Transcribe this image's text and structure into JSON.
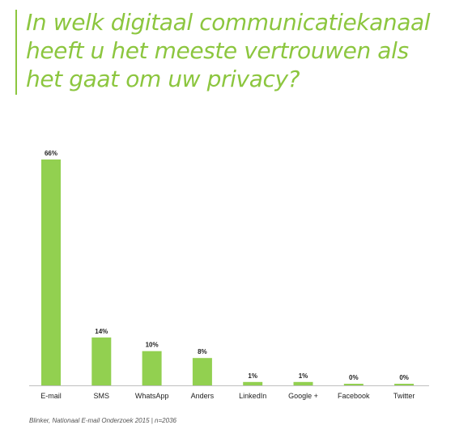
{
  "title": "In welk digitaal communicatiekanaal heeft u het meeste vertrouwen als het gaat om uw privacy?",
  "source": "Blinker, Nationaal E-mail Onderzoek 2015 | n=2036",
  "colors": {
    "accent": "#8cc63f",
    "bar": "#92d050",
    "axis": "#bfbfbf"
  },
  "chart_data": {
    "type": "bar",
    "title": "In welk digitaal communicatiekanaal heeft u het meeste vertrouwen als het gaat om uw privacy?",
    "categories": [
      "E-mail",
      "SMS",
      "WhatsApp",
      "Anders",
      "LinkedIn",
      "Google +",
      "Facebook",
      "Twitter"
    ],
    "values": [
      66,
      14,
      10,
      8,
      1,
      1,
      0,
      0
    ],
    "value_labels": [
      "66%",
      "14%",
      "10%",
      "8%",
      "1%",
      "1%",
      "0%",
      "0%"
    ],
    "unit": "%",
    "ylim": [
      0,
      66
    ],
    "grid": false,
    "legend": "none"
  }
}
